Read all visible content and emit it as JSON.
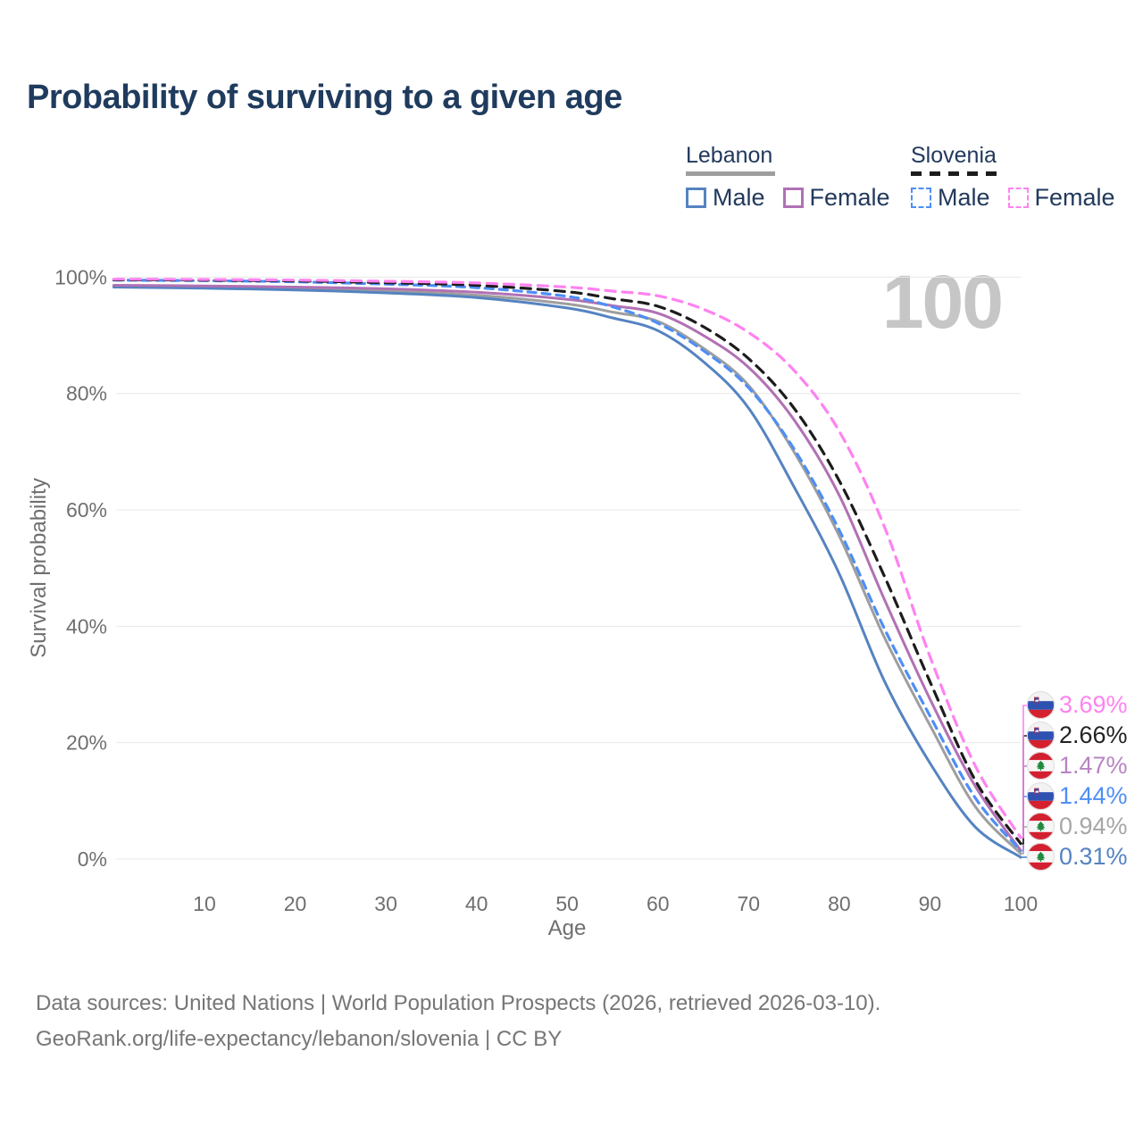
{
  "header": {
    "title": "Probability of surviving to a given age"
  },
  "legend": {
    "lebanon": {
      "title": "Lebanon",
      "male_label": "Male",
      "female_label": "Female",
      "male_color": "#5583c1",
      "female_color": "#b171b4",
      "underline_color": "#9e9e9e",
      "underline_style": "solid"
    },
    "slovenia": {
      "title": "Slovenia",
      "male_label": "Male",
      "female_label": "Female",
      "male_color": "#4e8ef5",
      "female_color": "#ff82f0",
      "underline_color": "#1c1c1c",
      "underline_style": "dashed"
    }
  },
  "chart_data": {
    "type": "line",
    "title": "Probability of surviving to a given age",
    "xlabel": "Age",
    "ylabel": "Survival probability",
    "xlim": [
      0,
      100
    ],
    "ylim": [
      0,
      100
    ],
    "x_ticks": [
      10,
      20,
      30,
      40,
      50,
      60,
      70,
      80,
      90,
      100
    ],
    "y_ticks": [
      {
        "value": 0,
        "label": "0%"
      },
      {
        "value": 20,
        "label": "20%"
      },
      {
        "value": 40,
        "label": "40%"
      },
      {
        "value": 60,
        "label": "60%"
      },
      {
        "value": 80,
        "label": "80%"
      },
      {
        "value": 100,
        "label": "100%"
      }
    ],
    "grid": "horizontal",
    "legend_position": "top-right",
    "watermark": "100",
    "x": [
      0,
      10,
      20,
      30,
      40,
      50,
      55,
      60,
      65,
      70,
      75,
      80,
      85,
      90,
      95,
      100
    ],
    "series": [
      {
        "id": "lebanon-both",
        "label": "Lebanon",
        "country": "Lebanon",
        "sex": "Both",
        "color": "#9e9e9e",
        "line_style": "solid",
        "dash": null,
        "flag": "lebanon",
        "end_label": "0.94%",
        "end_label_color": "#a6a6a6",
        "values": [
          98.5,
          98.3,
          98.1,
          97.6,
          96.9,
          95.4,
          94.0,
          92.4,
          87.8,
          81.4,
          70.0,
          55.5,
          38.0,
          23.0,
          9.0,
          0.94
        ]
      },
      {
        "id": "lebanon-male",
        "label": "Male",
        "country": "Lebanon",
        "sex": "Male",
        "color": "#5583c1",
        "line_style": "solid",
        "dash": null,
        "flag": "lebanon",
        "end_label": "0.31%",
        "end_label_color": "#5583c1",
        "values": [
          98.3,
          98.1,
          97.8,
          97.3,
          96.5,
          94.7,
          93.0,
          90.8,
          85.5,
          77.5,
          64.0,
          49.0,
          30.5,
          16.5,
          5.5,
          0.31
        ]
      },
      {
        "id": "lebanon-female",
        "label": "Female",
        "country": "Lebanon",
        "sex": "Female",
        "color": "#b171b4",
        "line_style": "solid",
        "dash": null,
        "flag": "lebanon",
        "end_label": "1.47%",
        "end_label_color": "#b884c2",
        "values": [
          98.6,
          98.5,
          98.3,
          98.0,
          97.4,
          96.2,
          95.1,
          93.8,
          90.0,
          84.5,
          75.5,
          62.5,
          44.5,
          27.5,
          12.5,
          1.47
        ]
      },
      {
        "id": "slovenia-male",
        "label": "Male",
        "country": "Slovenia",
        "sex": "Male",
        "color": "#4e8ef5",
        "line_style": "dashed",
        "dash": [
          9,
          7
        ],
        "flag": "slovenia",
        "end_label": "1.44%",
        "end_label_color": "#4e8ef5",
        "values": [
          99.5,
          99.4,
          99.2,
          98.8,
          98.2,
          96.7,
          94.9,
          92.1,
          87.4,
          81.0,
          70.5,
          56.5,
          39.5,
          24.6,
          10.5,
          1.44
        ]
      },
      {
        "id": "slovenia-both",
        "label": "Slovenia",
        "country": "Slovenia",
        "sex": "Both",
        "color": "#1c1c1c",
        "line_style": "dashed",
        "dash": [
          11,
          8
        ],
        "flag": "slovenia",
        "end_label": "2.66%",
        "end_label_color": "#222222",
        "values": [
          99.55,
          99.5,
          99.35,
          99.05,
          98.6,
          97.5,
          96.3,
          95.0,
          91.5,
          86.0,
          77.5,
          65.0,
          48.5,
          30.5,
          13.5,
          2.66
        ]
      },
      {
        "id": "slovenia-female",
        "label": "Female",
        "country": "Slovenia",
        "sex": "Female",
        "color": "#ff82f0",
        "line_style": "dashed",
        "dash": [
          11,
          8
        ],
        "flag": "slovenia",
        "end_label": "3.69%",
        "end_label_color": "#ff82f0",
        "values": [
          99.65,
          99.6,
          99.5,
          99.3,
          99.0,
          98.3,
          97.6,
          96.8,
          94.5,
          90.5,
          84.0,
          73.5,
          57.0,
          34.8,
          16.0,
          3.69
        ]
      }
    ],
    "flag_colors": {
      "slovenia_white": "#f2f2f2",
      "slovenia_blue": "#2e52b2",
      "slovenia_red": "#d5212e",
      "lebanon_red": "#d32030",
      "lebanon_white": "#f6f6f6",
      "lebanon_green": "#1f8a3d"
    },
    "grid_color": "#e8e8e8"
  },
  "footer": {
    "line1": "Data sources: United Nations | World Population Prospects (2026, retrieved 2026-03-10).",
    "line2": "GeoRank.org/life-expectancy/lebanon/slovenia | CC BY"
  }
}
